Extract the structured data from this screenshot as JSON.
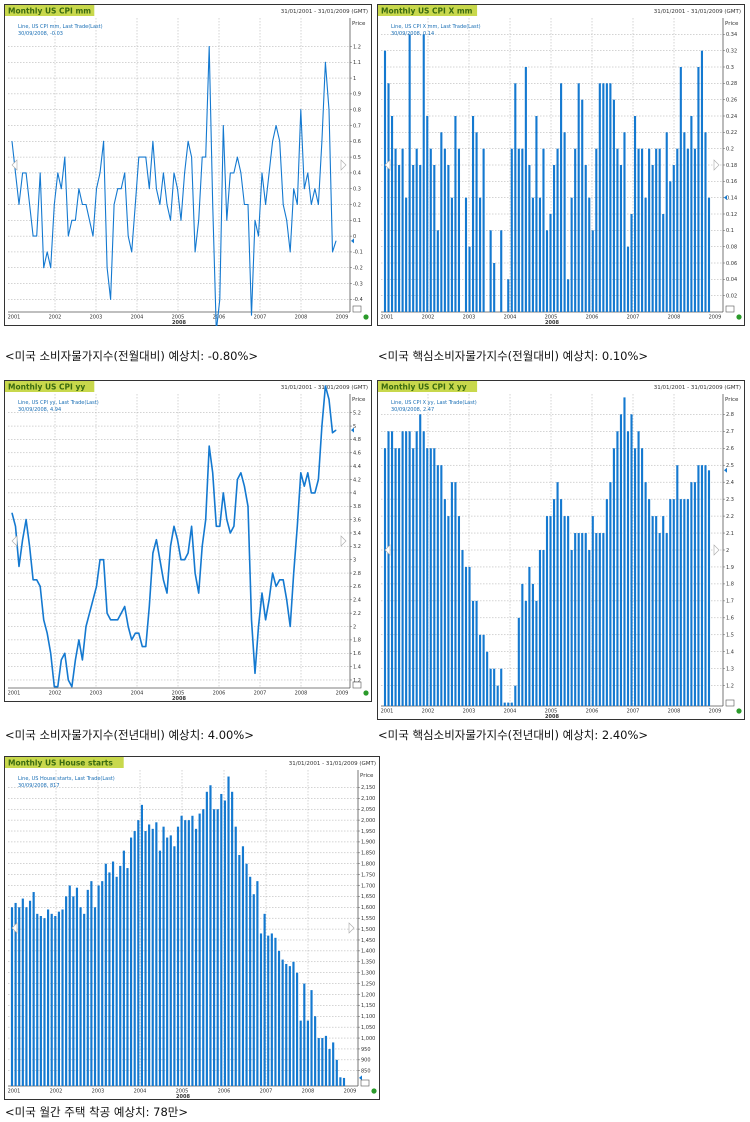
{
  "colors": {
    "line": "#1479d0",
    "title_bg": "#c8d84c",
    "title_text": "#3a6a10",
    "grid": "#a8a8a8",
    "frame": "#333333"
  },
  "charts": [
    {
      "title": "Monthly US CPI mm",
      "range": "31/01/2001 - 31/01/2009 (GMT)",
      "axis_label": "Price",
      "legend": "Line, US CPI mm, Last Trade(Last)",
      "last_value": "30/09/2008, -0.03",
      "caption": "<미국 소비자물가지수(전월대비) 예상치: -0.80%>",
      "x_axis_label": "2008"
    },
    {
      "title": "Monthly US CPI X mm",
      "range": "31/01/2001 - 31/01/2009 (GMT)",
      "axis_label": "Price",
      "legend": "Line, US CPI X mm, Last Trade(Last)",
      "last_value": "30/09/2008, 0.14",
      "caption": "<미국 핵심소비자물가지수(전월대비) 예상치: 0.10%>",
      "x_axis_label": "2008"
    },
    {
      "title": "Monthly US CPI yy",
      "range": "31/01/2001 - 31/01/2009 (GMT)",
      "axis_label": "Price",
      "legend": "Line, US CPI yy, Last Trade(Last)",
      "last_value": "30/09/2008, 4.94",
      "caption": "<미국 소비자물가지수(전년대비) 예상치: 4.00%>",
      "x_axis_label": "2008"
    },
    {
      "title": "Monthly US CPI X yy",
      "range": "31/01/2001 - 31/01/2009 (GMT)",
      "axis_label": "Price",
      "legend": "Line, US CPI X yy, Last Trade(Last)",
      "last_value": "30/09/2008, 2.47",
      "caption": "<미국 핵심소비자물가지수(전년대비) 예상치: 2.40%>",
      "x_axis_label": "2008"
    },
    {
      "title": "Monthly US House starts",
      "range": "31/01/2001 - 31/01/2009 (GMT)",
      "axis_label": "Price",
      "legend": "Line, US House starts, Last Trade(Last)",
      "last_value": "30/09/2008, 817",
      "caption": "<미국 월간 주택 착공 예상치: 78만>",
      "x_axis_label": "2008"
    }
  ],
  "chart_data": [
    {
      "type": "line",
      "x_range": [
        "2001-01",
        "2008-12"
      ],
      "x_ticks": [
        "2001",
        "2002",
        "2003",
        "2004",
        "2005",
        "2006",
        "2007",
        "2008",
        "2009"
      ],
      "y_ticks": [
        "-0.4",
        "-0.3",
        "-0.2",
        "-0.1",
        "0",
        "0.1",
        "0.2",
        "0.3",
        "0.4",
        "0.5",
        "0.6",
        "0.7",
        "0.8",
        "0.9",
        "1",
        "1.1",
        "1.2"
      ],
      "ylim": [
        -0.48,
        1.38
      ],
      "grid": true,
      "series": [
        {
          "values": [
            0.6,
            0.4,
            0.2,
            0.4,
            0.4,
            0.2,
            0.0,
            0.0,
            0.4,
            -0.2,
            -0.1,
            -0.2,
            0.2,
            0.4,
            0.3,
            0.5,
            0.0,
            0.1,
            0.1,
            0.3,
            0.2,
            0.2,
            0.1,
            0.0,
            0.3,
            0.4,
            0.6,
            -0.2,
            -0.4,
            0.2,
            0.3,
            0.3,
            0.4,
            0.0,
            -0.1,
            0.2,
            0.5,
            0.5,
            0.5,
            0.3,
            0.6,
            0.3,
            0.2,
            0.4,
            0.2,
            0.1,
            0.4,
            0.3,
            0.1,
            0.4,
            0.6,
            0.5,
            -0.1,
            0.1,
            0.5,
            0.5,
            1.2,
            0.2,
            -0.6,
            -0.4,
            0.7,
            0.1,
            0.4,
            0.4,
            0.5,
            0.4,
            0.2,
            0.2,
            -0.5,
            0.1,
            0.0,
            0.4,
            0.2,
            0.4,
            0.6,
            0.7,
            0.6,
            0.2,
            0.1,
            -0.1,
            0.3,
            0.2,
            0.8,
            0.3,
            0.4,
            0.2,
            0.3,
            0.2,
            0.6,
            1.1,
            0.8,
            -0.1,
            -0.03
          ]
        }
      ]
    },
    {
      "type": "bar",
      "x_range": [
        "2001-01",
        "2008-12"
      ],
      "x_ticks": [
        "2001",
        "2002",
        "2003",
        "2004",
        "2005",
        "2006",
        "2007",
        "2008",
        "2009"
      ],
      "y_ticks": [
        "0.02",
        "0.04",
        "0.06",
        "0.08",
        "0.1",
        "0.12",
        "0.14",
        "0.16",
        "0.18",
        "0.2",
        "0.22",
        "0.24",
        "0.26",
        "0.28",
        "0.3",
        "0.32",
        "0.34"
      ],
      "ylim": [
        0,
        0.36
      ],
      "grid": true,
      "series": [
        {
          "values": [
            0.32,
            0.28,
            0.24,
            0.2,
            0.18,
            0.2,
            0.14,
            0.34,
            0.18,
            0.2,
            0.18,
            0.34,
            0.24,
            0.2,
            0.18,
            0.1,
            0.22,
            0.2,
            0.18,
            0.14,
            0.24,
            0.2,
            0.0,
            0.14,
            0.08,
            0.24,
            0.22,
            0.14,
            0.2,
            0.0,
            0.1,
            0.06,
            0.0,
            0.1,
            0.0,
            0.04,
            0.2,
            0.28,
            0.2,
            0.2,
            0.3,
            0.18,
            0.14,
            0.24,
            0.14,
            0.2,
            0.1,
            0.12,
            0.18,
            0.2,
            0.28,
            0.22,
            0.04,
            0.14,
            0.2,
            0.28,
            0.26,
            0.18,
            0.14,
            0.1,
            0.2,
            0.28,
            0.28,
            0.28,
            0.28,
            0.26,
            0.2,
            0.18,
            0.22,
            0.08,
            0.12,
            0.24,
            0.2,
            0.2,
            0.14,
            0.2,
            0.18,
            0.2,
            0.2,
            0.12,
            0.22,
            0.16,
            0.18,
            0.2,
            0.3,
            0.22,
            0.2,
            0.24,
            0.2,
            0.3,
            0.32,
            0.22,
            0.14
          ]
        }
      ]
    },
    {
      "type": "line",
      "x_range": [
        "2001-01",
        "2008-12"
      ],
      "x_ticks": [
        "2001",
        "2002",
        "2003",
        "2004",
        "2005",
        "2006",
        "2007",
        "2008",
        "2009"
      ],
      "y_ticks": [
        "1.2",
        "1.4",
        "1.6",
        "1.8",
        "2",
        "2.2",
        "2.4",
        "2.6",
        "2.8",
        "3",
        "3.2",
        "3.4",
        "3.6",
        "3.8",
        "4",
        "4.2",
        "4.4",
        "4.6",
        "4.8",
        "5",
        "5.2"
      ],
      "ylim": [
        1.08,
        5.48
      ],
      "grid": true,
      "series": [
        {
          "values": [
            3.7,
            3.5,
            2.9,
            3.3,
            3.6,
            3.2,
            2.7,
            2.7,
            2.6,
            2.1,
            1.9,
            1.6,
            1.1,
            1.1,
            1.5,
            1.6,
            1.2,
            1.1,
            1.5,
            1.8,
            1.5,
            2.0,
            2.2,
            2.4,
            2.6,
            3.0,
            3.0,
            2.2,
            2.1,
            2.1,
            2.1,
            2.2,
            2.3,
            2.0,
            1.8,
            1.9,
            1.9,
            1.7,
            1.7,
            2.3,
            3.1,
            3.3,
            3.0,
            2.7,
            2.5,
            3.2,
            3.5,
            3.3,
            3.0,
            3.0,
            3.1,
            3.5,
            2.8,
            2.5,
            3.2,
            3.6,
            4.7,
            4.3,
            3.5,
            3.5,
            4.0,
            3.6,
            3.4,
            3.5,
            4.2,
            4.3,
            4.1,
            3.8,
            2.1,
            1.3,
            2.0,
            2.5,
            2.1,
            2.4,
            2.8,
            2.6,
            2.7,
            2.7,
            2.4,
            2.0,
            2.8,
            3.5,
            4.3,
            4.1,
            4.3,
            4.0,
            4.0,
            4.2,
            5.0,
            5.6,
            5.4,
            4.9,
            4.94
          ]
        }
      ]
    },
    {
      "type": "bar",
      "x_range": [
        "2001-01",
        "2008-12"
      ],
      "x_ticks": [
        "2001",
        "2002",
        "2003",
        "2004",
        "2005",
        "2006",
        "2007",
        "2008",
        "2009"
      ],
      "y_ticks": [
        "1.2",
        "1.3",
        "1.4",
        "1.5",
        "1.6",
        "1.7",
        "1.8",
        "1.9",
        "2",
        "2.1",
        "2.2",
        "2.3",
        "2.4",
        "2.5",
        "2.6",
        "2.7",
        "2.8"
      ],
      "ylim": [
        1.08,
        2.92
      ],
      "grid": true,
      "series": [
        {
          "values": [
            2.6,
            2.7,
            2.7,
            2.6,
            2.6,
            2.7,
            2.7,
            2.7,
            2.6,
            2.7,
            2.8,
            2.7,
            2.6,
            2.6,
            2.6,
            2.5,
            2.5,
            2.3,
            2.2,
            2.4,
            2.4,
            2.2,
            2.0,
            1.9,
            1.9,
            1.7,
            1.7,
            1.5,
            1.5,
            1.4,
            1.3,
            1.3,
            1.2,
            1.3,
            1.1,
            1.1,
            1.1,
            1.2,
            1.6,
            1.8,
            1.7,
            1.9,
            1.8,
            1.7,
            2.0,
            2.0,
            2.2,
            2.2,
            2.3,
            2.4,
            2.3,
            2.2,
            2.2,
            2.0,
            2.1,
            2.1,
            2.1,
            2.1,
            2.0,
            2.2,
            2.1,
            2.1,
            2.1,
            2.3,
            2.4,
            2.6,
            2.7,
            2.8,
            2.9,
            2.7,
            2.8,
            2.6,
            2.7,
            2.6,
            2.4,
            2.3,
            2.2,
            2.2,
            2.1,
            2.2,
            2.1,
            2.3,
            2.3,
            2.5,
            2.3,
            2.3,
            2.3,
            2.4,
            2.4,
            2.5,
            2.5,
            2.5,
            2.47
          ]
        }
      ]
    },
    {
      "type": "bar",
      "x_range": [
        "2001-01",
        "2008-12"
      ],
      "x_ticks": [
        "2001",
        "2002",
        "2003",
        "2004",
        "2005",
        "2006",
        "2007",
        "2008",
        "2009"
      ],
      "y_ticks": [
        "850",
        "900",
        "950",
        "1,000",
        "1,050",
        "1,100",
        "1,150",
        "1,200",
        "1,250",
        "1,300",
        "1,350",
        "1,400",
        "1,450",
        "1,500",
        "1,550",
        "1,600",
        "1,650",
        "1,700",
        "1,750",
        "1,800",
        "1,850",
        "1,900",
        "1,950",
        "2,000",
        "2,050",
        "2,100",
        "2,150"
      ],
      "ylim": [
        780,
        2230
      ],
      "grid": true,
      "series": [
        {
          "values": [
            1600,
            1620,
            1600,
            1640,
            1600,
            1630,
            1670,
            1570,
            1560,
            1550,
            1590,
            1570,
            1560,
            1580,
            1590,
            1650,
            1700,
            1650,
            1690,
            1600,
            1570,
            1680,
            1720,
            1600,
            1700,
            1720,
            1800,
            1760,
            1810,
            1740,
            1790,
            1860,
            1780,
            1920,
            1950,
            2000,
            2070,
            1950,
            1980,
            1960,
            1990,
            1860,
            1970,
            1920,
            1930,
            1880,
            1970,
            2020,
            2000,
            2000,
            2020,
            1960,
            2030,
            2050,
            2130,
            2160,
            2050,
            2050,
            2120,
            2090,
            2200,
            2130,
            1970,
            1840,
            1880,
            1800,
            1740,
            1660,
            1720,
            1480,
            1570,
            1470,
            1480,
            1460,
            1400,
            1360,
            1340,
            1330,
            1350,
            1300,
            1080,
            1250,
            1080,
            1220,
            1100,
            1000,
            1000,
            1010,
            950,
            980,
            900,
            820,
            817
          ]
        }
      ]
    }
  ]
}
